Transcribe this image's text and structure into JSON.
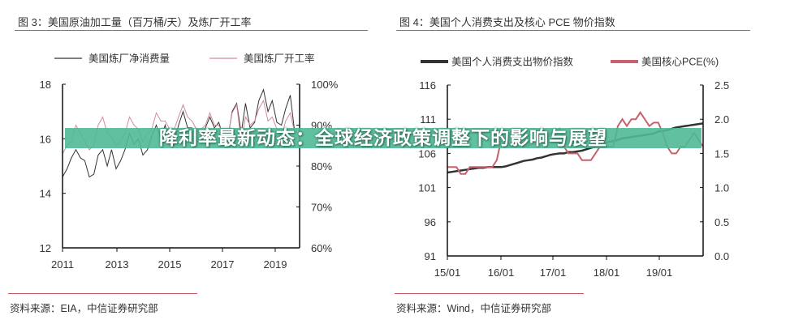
{
  "chart_data": [
    {
      "type": "line",
      "title": "图 3：美国原油加工量（百万桶/天）及炼厂开工率",
      "source": "资料来源：EIA，中信证券研究部",
      "x_tick_labels": [
        "2011",
        "2013",
        "2015",
        "2017",
        "2019"
      ],
      "x_range": [
        2011,
        2019.85
      ],
      "y_left": {
        "range": [
          12,
          18
        ],
        "ticks": [
          "12",
          "14",
          "16",
          "18"
        ]
      },
      "y_right": {
        "range": [
          60,
          100
        ],
        "ticks": [
          "60%",
          "70%",
          "80%",
          "90%",
          "100%"
        ]
      },
      "x": [
        2011,
        2011.17,
        2011.33,
        2011.5,
        2011.67,
        2011.83,
        2012,
        2012.17,
        2012.33,
        2012.5,
        2012.67,
        2012.83,
        2013,
        2013.17,
        2013.33,
        2013.5,
        2013.67,
        2013.83,
        2014,
        2014.17,
        2014.33,
        2014.5,
        2014.67,
        2014.83,
        2015,
        2015.17,
        2015.33,
        2015.5,
        2015.67,
        2015.83,
        2016,
        2016.17,
        2016.33,
        2016.5,
        2016.67,
        2016.83,
        2017,
        2017.17,
        2017.33,
        2017.5,
        2017.67,
        2017.83,
        2018,
        2018.17,
        2018.33,
        2018.5,
        2018.67,
        2018.83,
        2019,
        2019.17,
        2019.33,
        2019.5,
        2019.67
      ],
      "series": [
        {
          "name": "美国炼厂净消费量",
          "axis": "left",
          "color": "#333333",
          "values": [
            14.6,
            14.9,
            15.3,
            15.6,
            15.3,
            15.2,
            14.6,
            14.7,
            15.4,
            15.6,
            15.0,
            15.6,
            14.9,
            15.2,
            15.6,
            16.2,
            15.8,
            16.0,
            15.4,
            15.6,
            16.1,
            16.5,
            16.0,
            16.5,
            15.8,
            15.9,
            16.5,
            17.0,
            16.4,
            16.4,
            15.9,
            15.9,
            16.4,
            16.8,
            16.4,
            16.6,
            16.1,
            16.0,
            17.0,
            17.3,
            16.2,
            17.3,
            16.4,
            16.6,
            17.4,
            17.8,
            17.0,
            17.4,
            16.6,
            16.5,
            17.1,
            17.6,
            16.2
          ]
        },
        {
          "name": "美国炼厂开工率",
          "axis": "right",
          "color": "#d48a98",
          "values": [
            83,
            85,
            86,
            90,
            88,
            86,
            84,
            85,
            90,
            92,
            88,
            87,
            85,
            86,
            88,
            92,
            90,
            89,
            86,
            88,
            89,
            93,
            91,
            91,
            89,
            89,
            92,
            95,
            92,
            91,
            89,
            89,
            90,
            93,
            90,
            90,
            88,
            87,
            93,
            95,
            86,
            92,
            90,
            91,
            94,
            96,
            91,
            92,
            89,
            87,
            91,
            93,
            88
          ]
        }
      ]
    },
    {
      "type": "line",
      "title": "图 4：美国个人消费支出及核心 PCE 物价指数",
      "source": "资料来源：Wind，中信证券研究部",
      "x_tick_labels": [
        "15/01",
        "16/01",
        "17/01",
        "18/01",
        "19/01"
      ],
      "x_range": [
        "15/01",
        "19/10"
      ],
      "y_left": {
        "range": [
          91,
          116
        ],
        "ticks": [
          "91",
          "96",
          "101",
          "106",
          "111",
          "116"
        ]
      },
      "y_right": {
        "range": [
          0,
          2.5
        ],
        "ticks": [
          "0.0",
          "0.5",
          "1.0",
          "1.5",
          "2.0",
          "2.5"
        ]
      },
      "series": [
        {
          "name": "美国个人消费支出物价指数",
          "axis": "left",
          "color": "#333333",
          "values": [
            103.2,
            103.3,
            103.4,
            103.5,
            103.6,
            103.7,
            103.8,
            103.9,
            103.9,
            104.0,
            104.0,
            104.0,
            104.0,
            104.1,
            104.3,
            104.5,
            104.7,
            104.9,
            105.0,
            105.1,
            105.3,
            105.4,
            105.6,
            105.8,
            105.9,
            106.0,
            106.0,
            106.2,
            106.2,
            106.3,
            106.4,
            106.6,
            106.8,
            107.0,
            107.2,
            107.5,
            107.7,
            107.8,
            108.0,
            108.2,
            108.3,
            108.4,
            108.5,
            108.6,
            108.7,
            108.8,
            108.9,
            109.2,
            109.3,
            109.4,
            109.6,
            109.8,
            109.9,
            110.0,
            110.1,
            110.2,
            110.3,
            110.4
          ]
        },
        {
          "name": "美国核心PCE(%)",
          "axis": "right",
          "color": "#c8606e",
          "values": [
            1.3,
            1.3,
            1.3,
            1.2,
            1.2,
            1.3,
            1.3,
            1.3,
            1.3,
            1.3,
            1.3,
            1.4,
            1.7,
            1.7,
            1.6,
            1.6,
            1.7,
            1.6,
            1.6,
            1.7,
            1.7,
            1.7,
            1.7,
            1.8,
            1.8,
            1.86,
            1.6,
            1.5,
            1.5,
            1.5,
            1.4,
            1.4,
            1.4,
            1.5,
            1.6,
            1.6,
            1.6,
            1.6,
            1.9,
            2.0,
            1.9,
            2.0,
            2.0,
            2.1,
            2.0,
            1.9,
            1.95,
            1.95,
            1.8,
            1.6,
            1.5,
            1.5,
            1.6,
            1.6,
            1.7,
            1.8,
            1.7,
            1.6
          ]
        }
      ]
    }
  ],
  "banner": {
    "text": "降利率最新动态：全球经济政策调整下的影响与展望",
    "color": "#50b996"
  }
}
